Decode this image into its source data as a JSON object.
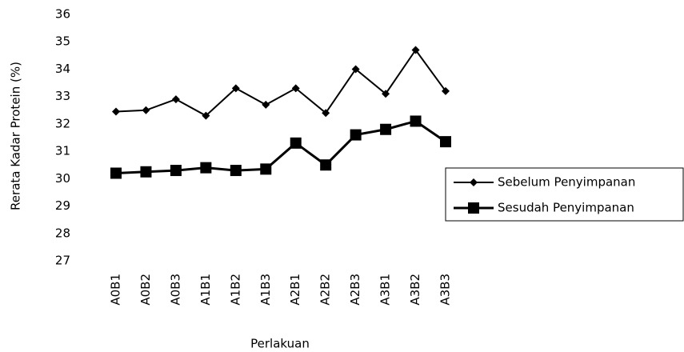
{
  "chart_data": {
    "type": "line",
    "x_label": "Perlakuan",
    "y_label": "Rerata Kadar Protein  (%)",
    "categories": [
      "A0B1",
      "A0B2",
      "A0B3",
      "A1B1",
      "A1B2",
      "A1B3",
      "A2B1",
      "A2B2",
      "A2B3",
      "A3B1",
      "A3B2",
      "A3B3"
    ],
    "series": [
      {
        "name": "Sebelum Penyimpanan",
        "color": "#000000",
        "marker": "diamond",
        "values": [
          32.45,
          32.5,
          32.9,
          32.3,
          33.3,
          32.7,
          33.3,
          32.4,
          34.0,
          33.1,
          34.7,
          33.2
        ]
      },
      {
        "name": "Sesudah Penyimpanan",
        "color": "#000000",
        "marker": "square",
        "values": [
          30.2,
          30.25,
          30.3,
          30.4,
          30.3,
          30.35,
          31.3,
          30.5,
          31.6,
          31.8,
          32.1,
          31.35
        ]
      }
    ],
    "ylim": [
      27,
      36
    ],
    "yticks": [
      27,
      28,
      29,
      30,
      31,
      32,
      33,
      34,
      35,
      36
    ],
    "grid": false,
    "legend": "right"
  }
}
